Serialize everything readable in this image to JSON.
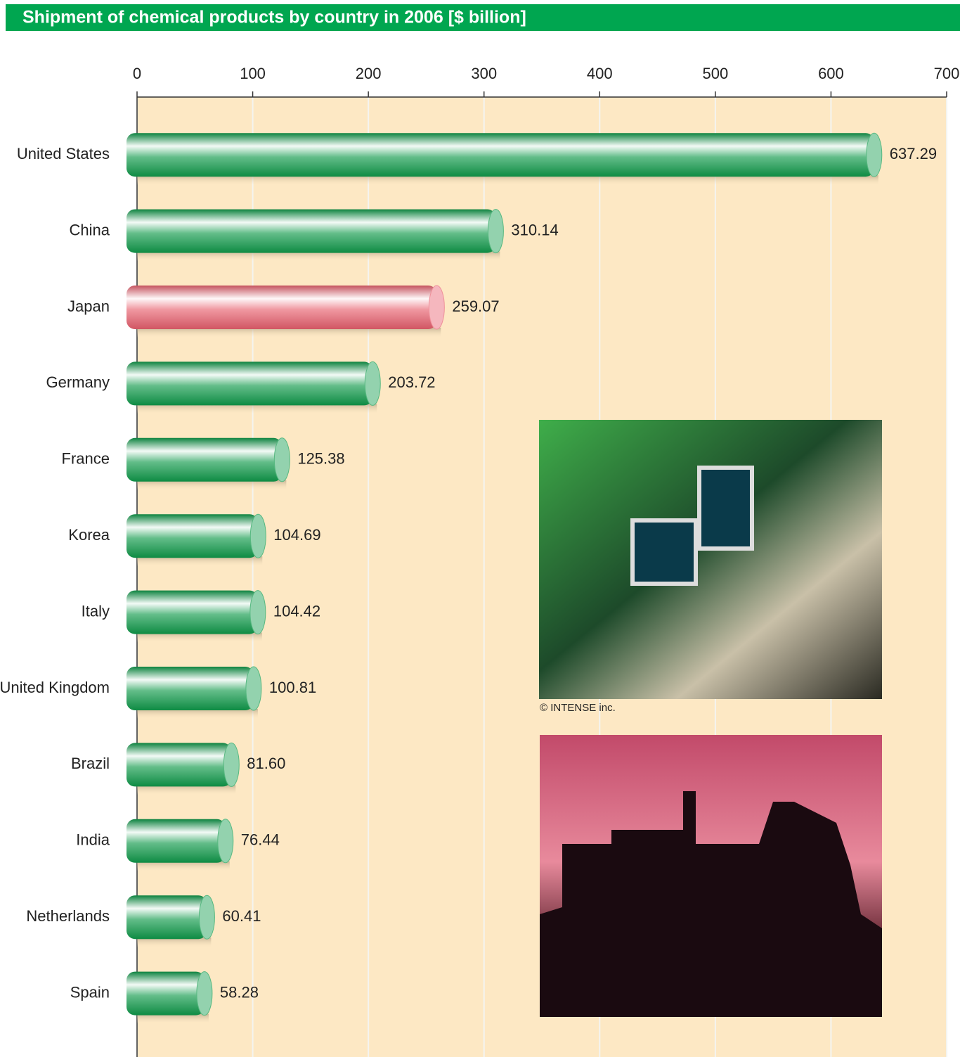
{
  "chart_data": {
    "type": "bar",
    "orientation": "horizontal",
    "title": "Shipment of chemical products by country in 2006 [$ billion]",
    "categories": [
      "United States",
      "China",
      "Japan",
      "Germany",
      "France",
      "Korea",
      "Italy",
      "United Kingdom",
      "Brazil",
      "India",
      "Netherlands",
      "Spain"
    ],
    "values": [
      637.29,
      310.14,
      259.07,
      203.72,
      125.38,
      104.69,
      104.42,
      100.81,
      81.6,
      76.44,
      60.41,
      58.28
    ],
    "value_labels": [
      "637.29",
      "310.14",
      "259.07",
      "203.72",
      "125.38",
      "104.69",
      "104.42",
      "100.81",
      "81.60",
      "76.44",
      "60.41",
      "58.28"
    ],
    "colors": [
      "#0f9a4a",
      "#0f9a4a",
      "#e8606e",
      "#0f9a4a",
      "#0f9a4a",
      "#0f9a4a",
      "#0f9a4a",
      "#0f9a4a",
      "#0f9a4a",
      "#0f9a4a",
      "#0f9a4a",
      "#0f9a4a"
    ],
    "xlim": [
      0,
      700
    ],
    "xticks": [
      0,
      100,
      200,
      300,
      400,
      500,
      600,
      700
    ],
    "grid": true,
    "photo_credit": "© INTENSE inc."
  }
}
